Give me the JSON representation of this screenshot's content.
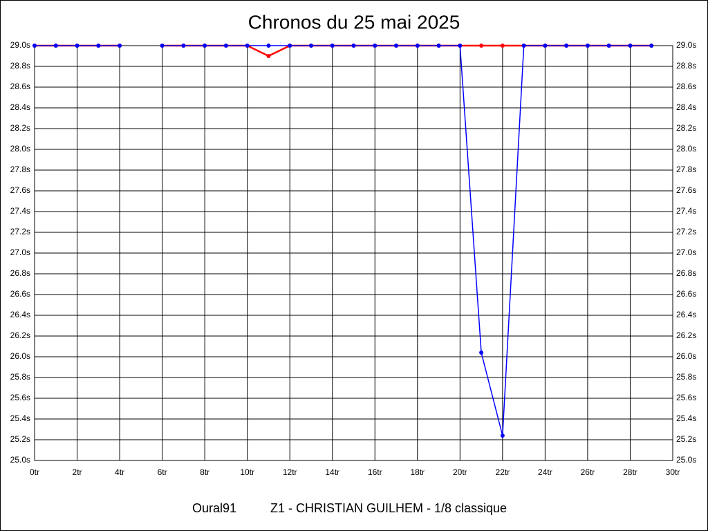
{
  "chart_data": {
    "type": "line",
    "title": "Chronos du 25 mai 2025",
    "footer": [
      "Oural91",
      "Z1 - CHRISTIAN GUILHEM - 1/8 classique"
    ],
    "x": [
      0,
      1,
      2,
      3,
      4,
      5,
      6,
      7,
      8,
      9,
      10,
      11,
      12,
      13,
      14,
      15,
      16,
      17,
      18,
      19,
      20,
      21,
      22,
      23,
      24,
      25,
      26,
      27,
      28,
      29
    ],
    "series": [
      {
        "color": "#ff0000",
        "values": [
          29,
          29,
          29,
          29,
          29,
          null,
          29,
          29,
          29,
          29,
          29,
          28.9,
          29,
          29,
          29,
          29,
          29,
          29,
          29,
          29,
          29,
          29,
          29,
          29,
          29,
          29,
          29,
          29,
          29,
          29
        ]
      },
      {
        "color": "#0000ff",
        "values": [
          29,
          29,
          29,
          29,
          29,
          null,
          29,
          29,
          29,
          29,
          29,
          29,
          29,
          29,
          29,
          29,
          29,
          29,
          29,
          29,
          29,
          26.04,
          25.24,
          29,
          29,
          29,
          29,
          29,
          29,
          29
        ]
      }
    ],
    "xlim": [
      0,
      30
    ],
    "xticks": [
      {
        "value": 0,
        "label": "0tr"
      },
      {
        "value": 2,
        "label": "2tr"
      },
      {
        "value": 4,
        "label": "4tr"
      },
      {
        "value": 6,
        "label": "6tr"
      },
      {
        "value": 8,
        "label": "8tr"
      },
      {
        "value": 10,
        "label": "10tr"
      },
      {
        "value": 12,
        "label": "12tr"
      },
      {
        "value": 14,
        "label": "14tr"
      },
      {
        "value": 16,
        "label": "16tr"
      },
      {
        "value": 18,
        "label": "18tr"
      },
      {
        "value": 20,
        "label": "20tr"
      },
      {
        "value": 22,
        "label": "22tr"
      },
      {
        "value": 24,
        "label": "24tr"
      },
      {
        "value": 26,
        "label": "26tr"
      },
      {
        "value": 28,
        "label": "28tr"
      },
      {
        "value": 30,
        "label": "30tr"
      }
    ],
    "ylim": [
      25,
      29
    ],
    "yticks": [
      {
        "value": 25,
        "label": "25.0s"
      },
      {
        "value": 25.2,
        "label": "25.2s"
      },
      {
        "value": 25.4,
        "label": "25.4s"
      },
      {
        "value": 25.6,
        "label": "25.6s"
      },
      {
        "value": 25.8,
        "label": "25.8s"
      },
      {
        "value": 26,
        "label": "26.0s"
      },
      {
        "value": 26.2,
        "label": "26.2s"
      },
      {
        "value": 26.4,
        "label": "26.4s"
      },
      {
        "value": 26.6,
        "label": "26.6s"
      },
      {
        "value": 26.8,
        "label": "26.8s"
      },
      {
        "value": 27,
        "label": "27.0s"
      },
      {
        "value": 27.2,
        "label": "27.2s"
      },
      {
        "value": 27.4,
        "label": "27.4s"
      },
      {
        "value": 27.6,
        "label": "27.6s"
      },
      {
        "value": 27.8,
        "label": "27.8s"
      },
      {
        "value": 28,
        "label": "28.0s"
      },
      {
        "value": 28.2,
        "label": "28.2s"
      },
      {
        "value": 28.4,
        "label": "28.4s"
      },
      {
        "value": 28.6,
        "label": "28.6s"
      },
      {
        "value": 28.8,
        "label": "28.8s"
      },
      {
        "value": 29,
        "label": "29.0s"
      }
    ],
    "grid": true
  }
}
